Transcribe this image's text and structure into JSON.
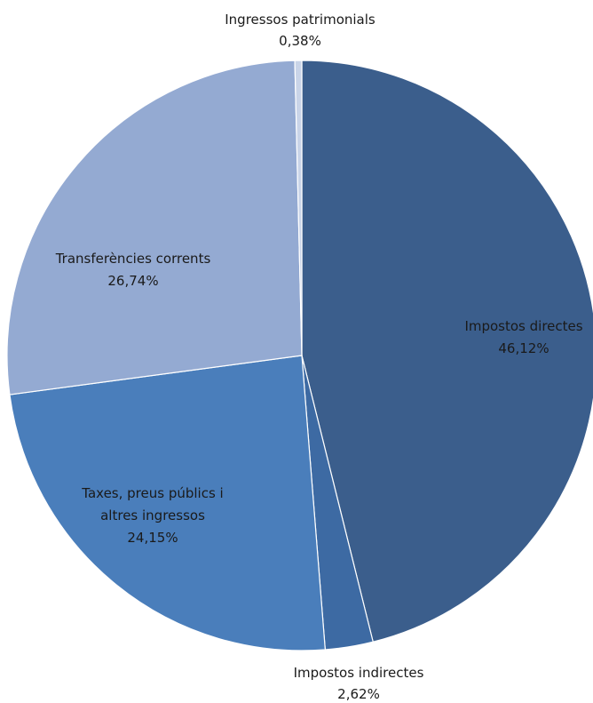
{
  "chart_data": {
    "type": "pie",
    "title": "",
    "slices": [
      {
        "name": "Impostos directes",
        "value": 46.12,
        "label": "46,12%",
        "color": "#3b5e8c"
      },
      {
        "name": "Impostos indirectes",
        "value": 2.62,
        "label": "2,62%",
        "color": "#3d6aa3"
      },
      {
        "name": "Taxes, preus públics i altres ingressos",
        "value": 24.15,
        "label": "24,15%",
        "color": "#4a7ebb"
      },
      {
        "name": "Transferències corrents",
        "value": 26.74,
        "label": "26,74%",
        "color": "#94aad2"
      },
      {
        "name": "Ingressos patrimonials",
        "value": 0.38,
        "label": "0,38%",
        "color": "#c9d4e8"
      }
    ],
    "start_angle": "12 o'clock",
    "direction": "clockwise",
    "legend": "none",
    "data_labels": "category name and percentage"
  }
}
